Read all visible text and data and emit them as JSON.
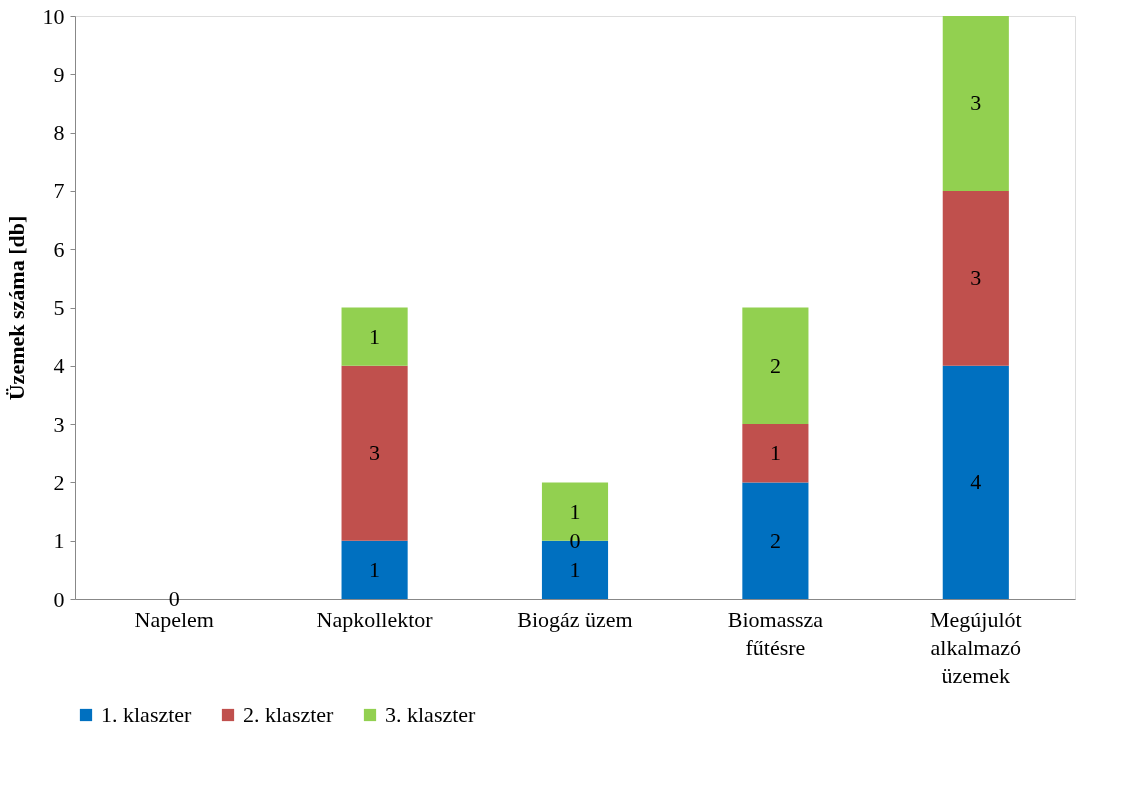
{
  "chart_data": {
    "type": "bar",
    "stacked": true,
    "ylabel": "Üzemek száma [db]",
    "categories": [
      "Napelem",
      "Napkollektor",
      "Biogáz üzem",
      "Biomassza fűtésre",
      "Megújulót alkalmazó üzemek"
    ],
    "series": [
      {
        "name": "1. klaszter",
        "color": "#0070c0",
        "values": [
          0,
          1,
          1,
          2,
          4
        ],
        "value_labels": [
          "0",
          "1",
          "1",
          "2",
          "4"
        ]
      },
      {
        "name": "2. klaszter",
        "color": "#c0504d",
        "values": [
          0,
          3,
          0,
          1,
          3
        ],
        "value_labels": [
          null,
          "3",
          "0",
          "1",
          "3"
        ]
      },
      {
        "name": "3. klaszter",
        "color": "#92d050",
        "values": [
          0,
          1,
          1,
          2,
          3
        ],
        "value_labels": [
          null,
          "1",
          "1",
          "2",
          "3"
        ]
      }
    ],
    "ylim": [
      0,
      10
    ],
    "yticks": [
      0,
      1,
      2,
      3,
      4,
      5,
      6,
      7,
      8,
      9,
      10
    ],
    "grid": false,
    "legend": "bottom"
  }
}
